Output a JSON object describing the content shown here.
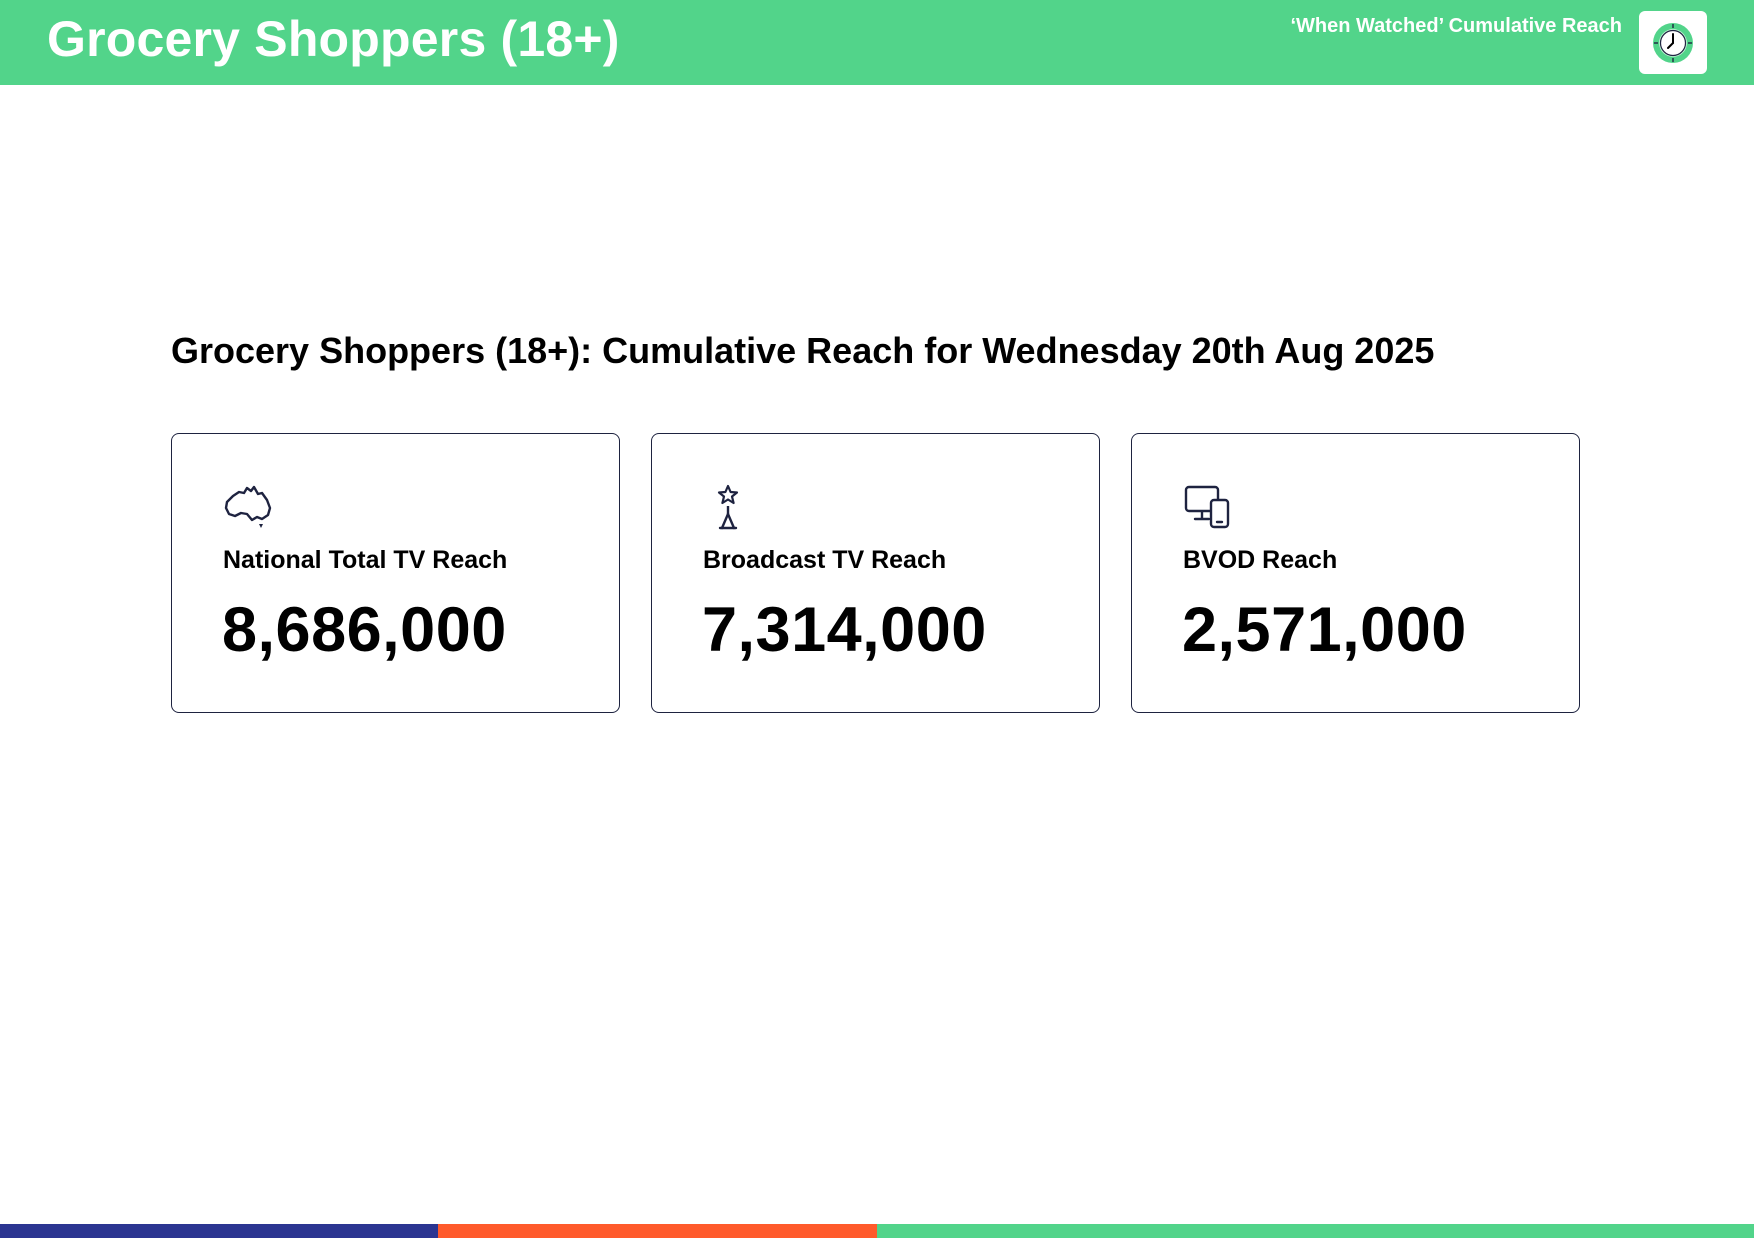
{
  "header": {
    "title": "Grocery Shoppers (18+)",
    "subtitle": "‘When Watched’ Cumulative Reach",
    "logo_icon": "clock-icon"
  },
  "main": {
    "heading": "Grocery Shoppers (18+): Cumulative Reach for Wednesday 20th Aug 2025"
  },
  "cards": [
    {
      "icon": "australia-map-icon",
      "label": "National Total TV Reach",
      "value": "8,686,000"
    },
    {
      "icon": "broadcast-tower-icon",
      "label": "Broadcast TV Reach",
      "value": "7,314,000"
    },
    {
      "icon": "devices-icon",
      "label": "BVOD Reach",
      "value": "2,571,000"
    }
  ],
  "colors": {
    "header_green": "#52d48a",
    "navy": "#2b3591",
    "orange": "#ff5a2b",
    "card_border": "#1e2340"
  }
}
